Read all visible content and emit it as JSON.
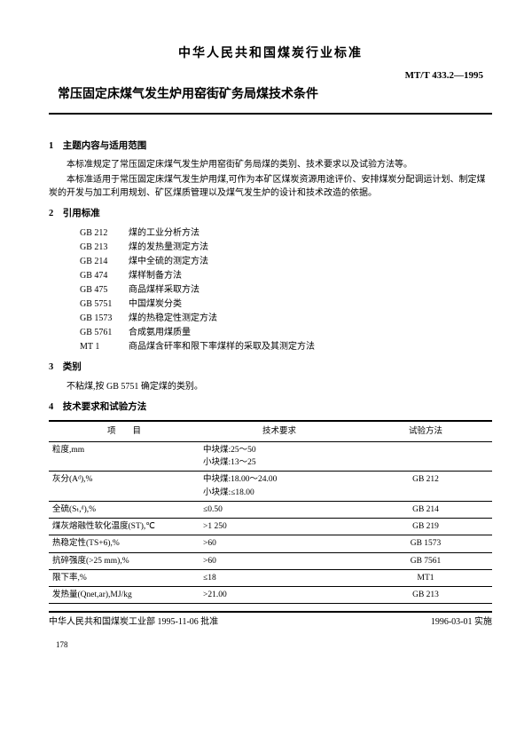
{
  "header": {
    "org_title": "中华人民共和国煤炭行业标准",
    "std_code": "MT/T 433.2—1995",
    "doc_title": "常压固定床煤气发生炉用窑街矿务局煤技术条件"
  },
  "sec1": {
    "head": "1　主题内容与适用范围",
    "p1": "本标准规定了常压固定床煤气发生炉用窑街矿务局煤的类别、技术要求以及试验方法等。",
    "p2": "本标准适用于常压固定床煤气发生炉用煤,可作为本矿区煤炭资源用途评价、安排煤炭分配调运计划、制定煤炭的开发与加工利用规划、矿区煤质管理以及煤气发生炉的设计和技术改造的依据。"
  },
  "sec2": {
    "head": "2　引用标准",
    "refs": [
      {
        "code": "GB 212",
        "name": "煤的工业分析方法"
      },
      {
        "code": "GB 213",
        "name": "煤的发热量测定方法"
      },
      {
        "code": "GB 214",
        "name": "煤中全硫的测定方法"
      },
      {
        "code": "GB 474",
        "name": "煤样制备方法"
      },
      {
        "code": "GB 475",
        "name": "商品煤样采取方法"
      },
      {
        "code": "GB 5751",
        "name": "中国煤炭分类"
      },
      {
        "code": "GB 1573",
        "name": "煤的热稳定性测定方法"
      },
      {
        "code": "GB 5761",
        "name": "合成氨用煤质量"
      },
      {
        "code": "MT 1",
        "name": "商品煤含矸率和限下率煤样的采取及其测定方法"
      }
    ]
  },
  "sec3": {
    "head": "3　类别",
    "p1": "不粘煤,按 GB 5751 确定煤的类别。"
  },
  "sec4": {
    "head": "4　技术要求和试验方法",
    "columns": [
      "项　　目",
      "技术要求",
      "试验方法"
    ],
    "rows": [
      {
        "item": "粒度,mm",
        "req": "中块煤:25～50\n小块煤:13～25",
        "method": ""
      },
      {
        "item": "灰分(Aᵈ),%",
        "req": "中块煤:18.00～24.00\n小块煤:≤18.00",
        "method": "GB 212"
      },
      {
        "item": "全硫(Sₜ,ᵈ),%",
        "req": "≤0.50",
        "method": "GB 214"
      },
      {
        "item": "煤灰熔融性软化温度(ST),℃",
        "req": ">1 250",
        "method": "GB 219"
      },
      {
        "item": "热稳定性(TS+6),%",
        "req": ">60",
        "method": "GB 1573"
      },
      {
        "item": "抗碎强度(>25 mm),%",
        "req": ">60",
        "method": "GB 7561"
      },
      {
        "item": "限下率,%",
        "req": "≤18",
        "method": "MT1"
      },
      {
        "item": "发热量(Qnet,ar),MJ/kg",
        "req": ">21.00",
        "method": "GB 213"
      }
    ]
  },
  "footer": {
    "left": "中华人民共和国煤炭工业部 1995-11-06 批准",
    "right": "1996-03-01 实施",
    "pagenum": "178"
  }
}
